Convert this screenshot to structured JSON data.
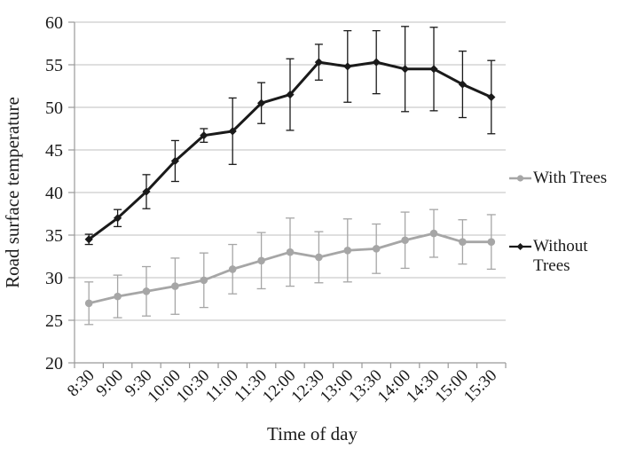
{
  "chart_data": {
    "type": "line",
    "title": "",
    "xlabel": "Time of day",
    "ylabel": "Road surface temperature",
    "categories": [
      "8:30",
      "9:00",
      "9:30",
      "10:00",
      "10:30",
      "11:00",
      "11:30",
      "12:00",
      "12:30",
      "13:00",
      "13:30",
      "14:00",
      "14:30",
      "15:00",
      "15:30"
    ],
    "ylim": [
      20,
      60
    ],
    "yticks": [
      20,
      25,
      30,
      35,
      40,
      45,
      50,
      55,
      60
    ],
    "grid": "horizontal",
    "legend_position": "right",
    "error_bars": true,
    "series": [
      {
        "name": "With Trees",
        "color": "#a6a6a6",
        "marker": "circle",
        "values": [
          27.0,
          27.8,
          28.4,
          29.0,
          29.7,
          31.0,
          32.0,
          33.0,
          32.4,
          33.2,
          33.4,
          34.4,
          35.2,
          34.2,
          34.2
        ],
        "error": [
          2.5,
          2.5,
          2.9,
          3.3,
          3.2,
          2.9,
          3.3,
          4.0,
          3.0,
          3.7,
          2.9,
          3.3,
          2.8,
          2.6,
          3.2
        ]
      },
      {
        "name": "Without Trees",
        "color": "#1a1a1a",
        "marker": "diamond",
        "values": [
          34.5,
          37.0,
          40.1,
          43.7,
          46.7,
          47.2,
          50.5,
          51.5,
          55.3,
          54.8,
          55.3,
          54.5,
          54.5,
          52.7,
          51.2
        ],
        "error": [
          0.6,
          1.0,
          2.0,
          2.4,
          0.8,
          3.9,
          2.4,
          4.2,
          2.1,
          4.2,
          3.7,
          5.0,
          4.9,
          3.9,
          4.3
        ]
      }
    ]
  },
  "colors": {
    "background": "#ffffff",
    "gridline": "#bfbfbf",
    "axis": "#999999",
    "text": "#1a1a1a",
    "series_with_trees": "#a6a6a6",
    "series_without_trees": "#1a1a1a"
  }
}
